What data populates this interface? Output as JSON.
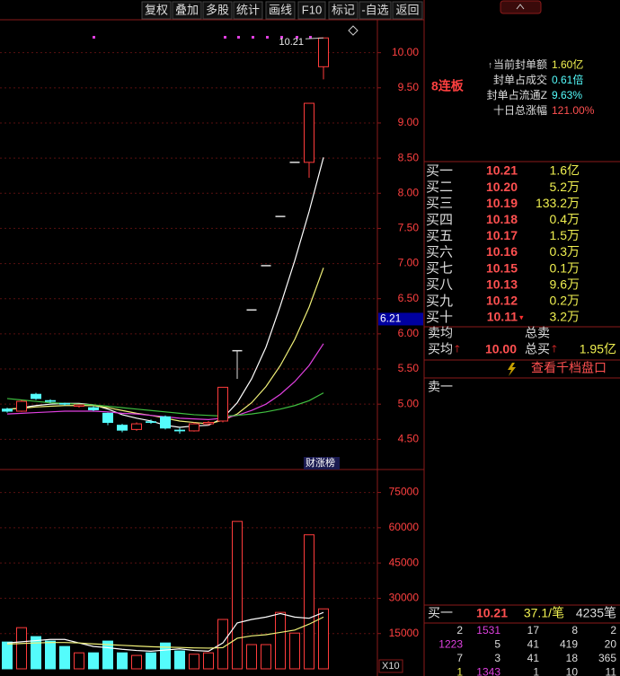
{
  "toolbar": [
    "复权",
    "叠加",
    "多股",
    "统计",
    "画线",
    "F10",
    "标记",
    "-自选",
    "返回"
  ],
  "chart_data": [
    {
      "type": "candlestick",
      "categories": [
        null,
        null,
        null,
        null,
        null,
        null,
        null,
        null,
        null,
        null,
        null,
        null,
        null,
        null,
        null,
        null,
        null,
        null,
        null,
        null,
        null,
        null,
        null
      ],
      "open": [
        4.93,
        4.9,
        5.14,
        5.05,
        5.01,
        4.97,
        4.95,
        4.87,
        4.7,
        4.64,
        4.75,
        4.82,
        4.63,
        4.62,
        4.72,
        4.76,
        5.76,
        6.34,
        6.97,
        7.67,
        8.44,
        8.44,
        9.8
      ],
      "high": [
        4.95,
        5.06,
        5.16,
        5.07,
        5.02,
        5.0,
        4.97,
        4.88,
        4.72,
        4.74,
        4.78,
        4.84,
        4.66,
        4.74,
        4.76,
        5.24,
        5.76,
        6.34,
        6.97,
        7.67,
        8.44,
        9.28,
        10.21
      ],
      "low": [
        4.88,
        4.89,
        5.06,
        5.02,
        4.98,
        4.95,
        4.9,
        4.7,
        4.6,
        4.62,
        4.72,
        4.64,
        4.58,
        4.61,
        4.7,
        4.74,
        5.36,
        6.34,
        6.97,
        7.67,
        8.44,
        8.22,
        9.62
      ],
      "close": [
        4.9,
        5.04,
        5.08,
        5.04,
        5.0,
        4.99,
        4.92,
        4.74,
        4.63,
        4.72,
        4.74,
        4.66,
        4.62,
        4.72,
        4.74,
        5.24,
        5.76,
        6.34,
        6.97,
        7.67,
        8.44,
        9.28,
        10.21
      ],
      "up_color": "#ff3c3c",
      "down_color": "#54fcfc",
      "flat_color": "#e0e0e0",
      "lines": [
        {
          "color": "#ffffff",
          "values": [
            4.92,
            4.95,
            4.98,
            5.0,
            5.01,
            5.01,
            4.99,
            4.93,
            4.85,
            4.8,
            4.76,
            4.7,
            4.67,
            4.69,
            4.7,
            4.8,
            5.02,
            5.36,
            5.81,
            6.4,
            7.04,
            7.74,
            8.51
          ]
        },
        {
          "color": "#f0f078",
          "values": [
            4.93,
            4.94,
            4.96,
            4.97,
            4.98,
            4.98,
            4.98,
            4.95,
            4.91,
            4.87,
            4.84,
            4.8,
            4.76,
            4.74,
            4.72,
            4.77,
            4.86,
            5.02,
            5.25,
            5.55,
            5.92,
            6.38,
            6.94
          ]
        },
        {
          "color": "#e040e0",
          "values": [
            4.86,
            4.87,
            4.88,
            4.89,
            4.9,
            4.9,
            4.9,
            4.89,
            4.87,
            4.86,
            4.84,
            4.82,
            4.8,
            4.79,
            4.78,
            4.8,
            4.84,
            4.91,
            5.0,
            5.14,
            5.32,
            5.55,
            5.86
          ]
        },
        {
          "color": "#40c040",
          "values": [
            5.08,
            5.06,
            5.04,
            5.02,
            5.01,
            5.0,
            4.99,
            4.97,
            4.95,
            4.93,
            4.91,
            4.89,
            4.87,
            4.85,
            4.84,
            4.83,
            4.84,
            4.86,
            4.89,
            4.93,
            4.98,
            5.05,
            5.16
          ]
        }
      ],
      "ylim": [
        4.07,
        10.43
      ],
      "yticks": [
        {
          "value": 4.5,
          "label": "4.50"
        },
        {
          "value": 5,
          "label": "5.00"
        },
        {
          "value": 5.5,
          "label": "5.50"
        },
        {
          "value": 6,
          "label": "6.00"
        },
        {
          "value": 6.5,
          "label": "6.50"
        },
        {
          "value": 7,
          "label": "7.00"
        },
        {
          "value": 7.5,
          "label": "7.50"
        },
        {
          "value": 8,
          "label": "8.00"
        },
        {
          "value": 8.5,
          "label": "8.50"
        },
        {
          "value": 9,
          "label": "9.00"
        },
        {
          "value": 9.5,
          "label": "9.50"
        },
        {
          "value": 10,
          "label": "10.00"
        }
      ],
      "grid": true,
      "price_label": {
        "value": 10.21,
        "label": "10.21"
      },
      "cursor_label": {
        "value": 6.21,
        "label": "6.21"
      },
      "badge": "财涨榜"
    },
    {
      "type": "bar",
      "categories": [
        null,
        null,
        null,
        null,
        null,
        null,
        null,
        null,
        null,
        null,
        null,
        null,
        null,
        null,
        null,
        null,
        null,
        null,
        null,
        null,
        null,
        null,
        null
      ],
      "values": [
        11400,
        17500,
        13700,
        11800,
        9500,
        6800,
        6800,
        11800,
        6800,
        5700,
        6800,
        11000,
        7600,
        6200,
        6800,
        21000,
        62700,
        10300,
        10300,
        24000,
        15200,
        57000,
        25500
      ],
      "colors": [
        "#54fcfc",
        "#ff3c3c",
        "#54fcfc",
        "#54fcfc",
        "#54fcfc",
        "#ff3c3c",
        "#54fcfc",
        "#54fcfc",
        "#54fcfc",
        "#ff3c3c",
        "#54fcfc",
        "#54fcfc",
        "#54fcfc",
        "#ff3c3c",
        "#ff3c3c",
        "#ff3c3c",
        "#ff3c3c",
        "#ff3c3c",
        "#ff3c3c",
        "#ff3c3c",
        "#ff3c3c",
        "#ff3c3c",
        "#ff3c3c"
      ],
      "down_color": "#54fcfc",
      "lines": [
        {
          "color": "#ffffff",
          "values": [
            11000,
            11500,
            12000,
            12500,
            12500,
            11000,
            9500,
            9000,
            8300,
            7800,
            7500,
            8000,
            8500,
            7800,
            7500,
            11000,
            19500,
            21000,
            22000,
            23500,
            22000,
            21500,
            24000
          ]
        },
        {
          "color": "#f0f078",
          "values": [
            10500,
            10800,
            11000,
            11200,
            11200,
            11000,
            10600,
            10300,
            10000,
            9700,
            9400,
            9200,
            9100,
            8900,
            8800,
            9000,
            13000,
            14000,
            14500,
            15500,
            16500,
            19000,
            22000
          ]
        }
      ],
      "ylim": [
        0,
        84000
      ],
      "yticks": [
        15000,
        30000,
        45000,
        60000,
        75000
      ],
      "scale_label": "X10"
    }
  ],
  "side_panel": {
    "badge": "8连板",
    "stats": [
      {
        "label": "当前封单额",
        "value": "1.60亿"
      },
      {
        "label": "封单占成交",
        "value": "0.61倍"
      },
      {
        "label": "封单占流通Z",
        "value": "9.63%"
      },
      {
        "label": "十日总涨幅",
        "value": "121.00%"
      }
    ],
    "bids": [
      {
        "label": "买一",
        "price": "10.21",
        "volume": "1.6亿"
      },
      {
        "label": "买二",
        "price": "10.20",
        "volume": "5.2万"
      },
      {
        "label": "买三",
        "price": "10.19",
        "volume": "133.2万"
      },
      {
        "label": "买四",
        "price": "10.18",
        "volume": "0.4万"
      },
      {
        "label": "买五",
        "price": "10.17",
        "volume": "1.5万"
      },
      {
        "label": "买六",
        "price": "10.16",
        "volume": "0.3万"
      },
      {
        "label": "买七",
        "price": "10.15",
        "volume": "0.1万"
      },
      {
        "label": "买八",
        "price": "10.13",
        "volume": "9.6万"
      },
      {
        "label": "买九",
        "price": "10.12",
        "volume": "0.2万"
      },
      {
        "label": "买十",
        "price": "10.11",
        "volume": "3.2万"
      }
    ],
    "averages": {
      "sell_avg": "卖均",
      "sell_total": "总卖",
      "buy_avg": "买均",
      "buy_avg_value": "10.00",
      "buy_total": "总买",
      "buy_total_value": "1.95亿"
    },
    "link": "查看千档盘口",
    "ask_label": "卖一",
    "trade": {
      "label": "买一",
      "price": "10.21",
      "per_order": "37.1/笔",
      "orders": "4235笔"
    },
    "queue": [
      [
        "2",
        "1531",
        "17",
        "8",
        "2"
      ],
      [
        "1223",
        "5",
        "41",
        "419",
        "20"
      ],
      [
        "7",
        "3",
        "41",
        "18",
        "365"
      ],
      [
        "1",
        "1343",
        "1",
        "10",
        "11"
      ]
    ]
  }
}
